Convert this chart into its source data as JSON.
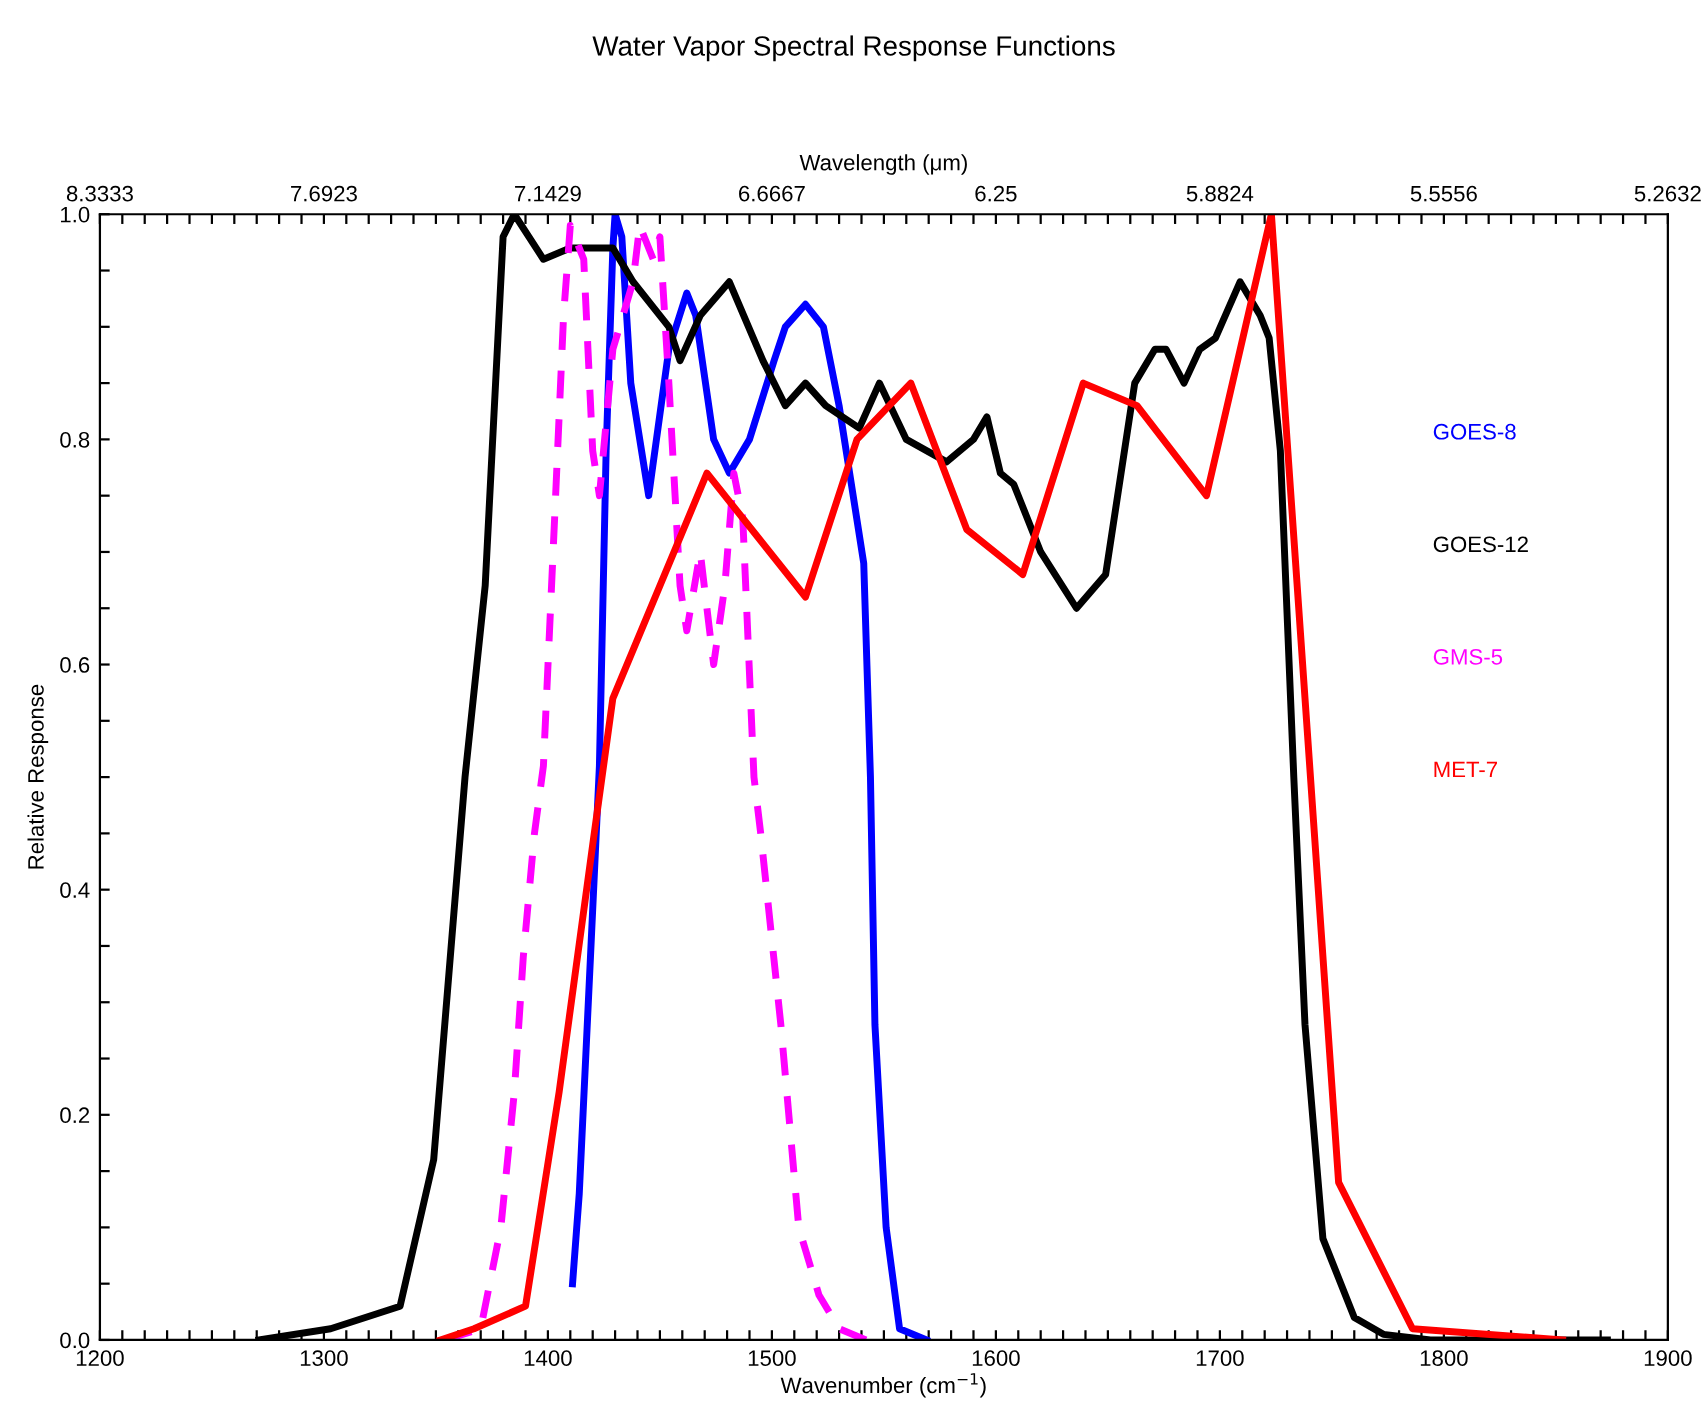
{
  "chart_data": {
    "type": "line",
    "title": "Water Vapor Spectral Response Functions",
    "xlabel": "Wavenumber (cm$^{−1}$)",
    "ylabel": "Relative Response",
    "x2label": "Wavelength (μm)",
    "xlim": [
      1200,
      1900
    ],
    "ylim": [
      0,
      1
    ],
    "xticks": [
      1200,
      {
        "value": 1210,
        "label": null
      },
      {
        "value": 1220,
        "label": null
      },
      {
        "value": 1230,
        "label": null
      },
      {
        "value": 1240,
        "label": null
      },
      {
        "value": 1250,
        "label": null
      },
      {
        "value": 1260,
        "label": null
      },
      {
        "value": 1270,
        "label": null
      },
      {
        "value": 1280,
        "label": null
      },
      {
        "value": 1290,
        "label": null
      },
      1300,
      {
        "value": 1310,
        "label": null
      },
      {
        "value": 1320,
        "label": null
      },
      {
        "value": 1330,
        "label": null
      },
      {
        "value": 1340,
        "label": null
      },
      {
        "value": 1350,
        "label": null
      },
      {
        "value": 1360,
        "label": null
      },
      {
        "value": 1370,
        "label": null
      },
      {
        "value": 1380,
        "label": null
      },
      {
        "value": 1390,
        "label": null
      },
      1400,
      {
        "value": 1410,
        "label": null
      },
      {
        "value": 1420,
        "label": null
      },
      {
        "value": 1430,
        "label": null
      },
      {
        "value": 1440,
        "label": null
      },
      {
        "value": 1450,
        "label": null
      },
      {
        "value": 1460,
        "label": null
      },
      {
        "value": 1470,
        "label": null
      },
      {
        "value": 1480,
        "label": null
      },
      {
        "value": 1490,
        "label": null
      },
      1500,
      {
        "value": 1510,
        "label": null
      },
      {
        "value": 1520,
        "label": null
      },
      {
        "value": 1530,
        "label": null
      },
      {
        "value": 1540,
        "label": null
      },
      {
        "value": 1550,
        "label": null
      },
      {
        "value": 1560,
        "label": null
      },
      {
        "value": 1570,
        "label": null
      },
      {
        "value": 1580,
        "label": null
      },
      {
        "value": 1590,
        "label": null
      },
      1600,
      {
        "value": 1610,
        "label": null
      },
      {
        "value": 1620,
        "label": null
      },
      {
        "value": 1630,
        "label": null
      },
      {
        "value": 1640,
        "label": null
      },
      {
        "value": 1650,
        "label": null
      },
      {
        "value": 1660,
        "label": null
      },
      {
        "value": 1670,
        "label": null
      },
      {
        "value": 1680,
        "label": null
      },
      {
        "value": 1690,
        "label": null
      },
      1700,
      {
        "value": 1710,
        "label": null
      },
      {
        "value": 1720,
        "label": null
      },
      {
        "value": 1730,
        "label": null
      },
      {
        "value": 1740,
        "label": null
      },
      {
        "value": 1750,
        "label": null
      },
      {
        "value": 1760,
        "label": null
      },
      {
        "value": 1770,
        "label": null
      },
      {
        "value": 1780,
        "label": null
      },
      {
        "value": 1790,
        "label": null
      },
      1800,
      {
        "value": 1810,
        "label": null
      },
      {
        "value": 1820,
        "label": null
      },
      {
        "value": 1830,
        "label": null
      },
      {
        "value": 1840,
        "label": null
      },
      {
        "value": 1850,
        "label": null
      },
      {
        "value": 1860,
        "label": null
      },
      {
        "value": 1870,
        "label": null
      },
      {
        "value": 1880,
        "label": null
      },
      {
        "value": 1890,
        "label": null
      },
      1900
    ],
    "annotations": [
      "8.3333",
      "7.6923",
      "7.1429",
      "6.6667",
      "6.25",
      "5.8824",
      "5.5556",
      "5.2632"
    ],
    "yticks": [
      {
        "value": 0,
        "label": "0.0"
      },
      {
        "value": 0.05,
        "label": null
      },
      {
        "value": 0.1,
        "label": null
      },
      {
        "value": 0.15,
        "label": null
      },
      {
        "value": 0.2,
        "label": "0.2"
      },
      {
        "value": 0.25,
        "label": null
      },
      {
        "value": 0.3,
        "label": null
      },
      {
        "value": 0.35,
        "label": null
      },
      {
        "value": 0.4,
        "label": "0.4"
      },
      {
        "value": 0.45,
        "label": null
      },
      {
        "value": 0.5,
        "label": null
      },
      {
        "value": 0.55,
        "label": null
      },
      {
        "value": 0.6,
        "label": "0.6"
      },
      {
        "value": 0.65,
        "label": null
      },
      {
        "value": 0.7,
        "label": null
      },
      {
        "value": 0.75,
        "label": null
      },
      {
        "value": 0.8,
        "label": "0.8"
      },
      {
        "value": 0.85,
        "label": null
      },
      {
        "value": 0.9,
        "label": null
      },
      {
        "value": 0.95,
        "label": null
      },
      {
        "value": 1.0,
        "label": "1.0"
      }
    ],
    "legend": "right",
    "grid": false,
    "marker": "none",
    "series": [
      {
        "name": "GOES-8",
        "color": "#0000ff",
        "line_style": "solid",
        "x": [
          1411,
          1414,
          1419,
          1423,
          1426,
          1429,
          1430,
          1433,
          1437,
          1445,
          1454,
          1462,
          1466,
          1474,
          1481,
          1490,
          1501,
          1506,
          1515,
          1523,
          1530,
          1541,
          1544,
          1546,
          1551,
          1557,
          1569
        ],
        "values": [
          0.05,
          0.13,
          0.34,
          0.51,
          0.79,
          0.97,
          1.0,
          0.98,
          0.85,
          0.75,
          0.88,
          0.93,
          0.91,
          0.8,
          0.77,
          0.8,
          0.87,
          0.9,
          0.92,
          0.9,
          0.83,
          0.69,
          0.5,
          0.28,
          0.1,
          0.01,
          0.0
        ]
      },
      {
        "name": "GOES-12",
        "color": "#000000",
        "line_style": "solid",
        "x": [
          1271,
          1303,
          1334,
          1349,
          1363,
          1372,
          1380,
          1385,
          1398,
          1410,
          1416,
          1429,
          1438,
          1454,
          1459,
          1468,
          1481,
          1496,
          1506,
          1515,
          1524,
          1539,
          1548,
          1560,
          1578,
          1590,
          1596,
          1602,
          1608,
          1620,
          1636,
          1649,
          1662,
          1671,
          1676,
          1684,
          1691,
          1698,
          1709,
          1718,
          1722,
          1727,
          1733,
          1738,
          1746,
          1760,
          1773,
          1794,
          1873
        ],
        "values": [
          0.0,
          0.01,
          0.03,
          0.16,
          0.5,
          0.67,
          0.98,
          1.0,
          0.96,
          0.97,
          0.97,
          0.97,
          0.94,
          0.9,
          0.87,
          0.91,
          0.94,
          0.87,
          0.83,
          0.85,
          0.83,
          0.81,
          0.85,
          0.8,
          0.78,
          0.8,
          0.82,
          0.77,
          0.76,
          0.7,
          0.65,
          0.68,
          0.85,
          0.88,
          0.88,
          0.85,
          0.88,
          0.89,
          0.94,
          0.91,
          0.89,
          0.79,
          0.5,
          0.28,
          0.09,
          0.02,
          0.005,
          0.0,
          0.0
        ]
      },
      {
        "name": "GMS-5",
        "color": "#ff00ff",
        "line_style": "dashed",
        "x": [
          1354,
          1370,
          1379,
          1385,
          1389,
          1394,
          1398,
          1403,
          1407,
          1410,
          1416,
          1420,
          1423,
          1429,
          1438,
          1441,
          1447,
          1450,
          1454,
          1459,
          1462,
          1468,
          1474,
          1479,
          1483,
          1487,
          1492,
          1495,
          1504,
          1512,
          1521,
          1530,
          1542
        ],
        "values": [
          0.0,
          0.01,
          0.1,
          0.22,
          0.34,
          0.45,
          0.51,
          0.73,
          0.91,
          0.99,
          0.96,
          0.79,
          0.75,
          0.88,
          0.94,
          0.99,
          0.96,
          0.98,
          0.85,
          0.67,
          0.63,
          0.7,
          0.6,
          0.67,
          0.77,
          0.73,
          0.5,
          0.45,
          0.28,
          0.1,
          0.04,
          0.01,
          0.0
        ]
      },
      {
        "name": "MET-7",
        "color": "#ff0000",
        "line_style": "solid",
        "x": [
          1352,
          1367,
          1390,
          1405,
          1420,
          1429,
          1471,
          1515,
          1538,
          1562,
          1587,
          1612,
          1639,
          1663,
          1694,
          1723,
          1753,
          1786,
          1853
        ],
        "values": [
          0.0,
          0.01,
          0.03,
          0.22,
          0.44,
          0.57,
          0.77,
          0.66,
          0.8,
          0.85,
          0.72,
          0.68,
          0.85,
          0.83,
          0.75,
          1.0,
          0.14,
          0.01,
          0.0
        ]
      }
    ]
  }
}
